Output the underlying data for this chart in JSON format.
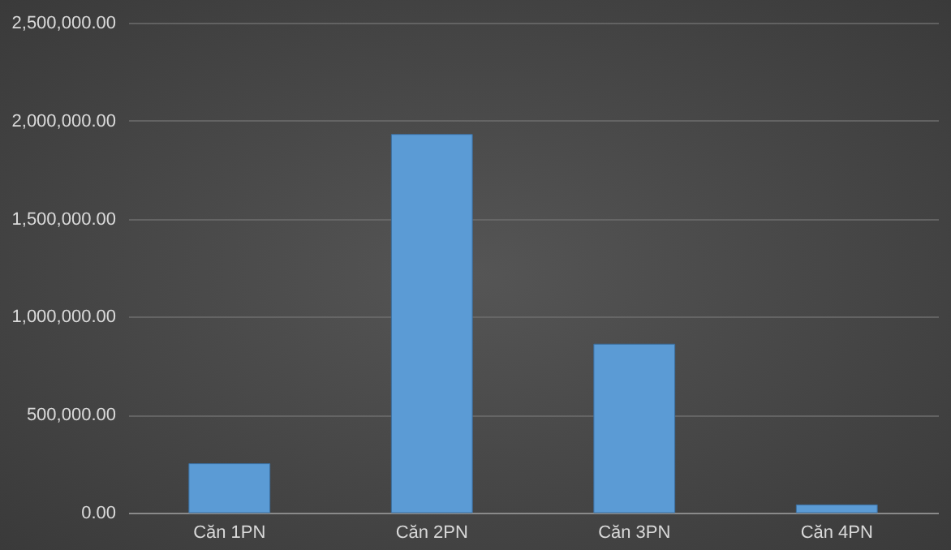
{
  "chart_data": {
    "type": "bar",
    "categories": [
      "Căn 1PN",
      "Căn 2PN",
      "Căn 3PN",
      "Căn 4PN"
    ],
    "values": [
      250000,
      1930000,
      860000,
      40000
    ],
    "color": "#5b9bd5",
    "ylim": [
      0,
      2500000
    ],
    "yticks": [
      {
        "value": 0,
        "label": "0.00"
      },
      {
        "value": 500000,
        "label": "500,000.00"
      },
      {
        "value": 1000000,
        "label": "1,000,000.00"
      },
      {
        "value": 1500000,
        "label": "1,500,000.00"
      },
      {
        "value": 2000000,
        "label": "2,000,000.00"
      },
      {
        "value": 2500000,
        "label": "2,500,000.00"
      }
    ],
    "grid": "y"
  }
}
